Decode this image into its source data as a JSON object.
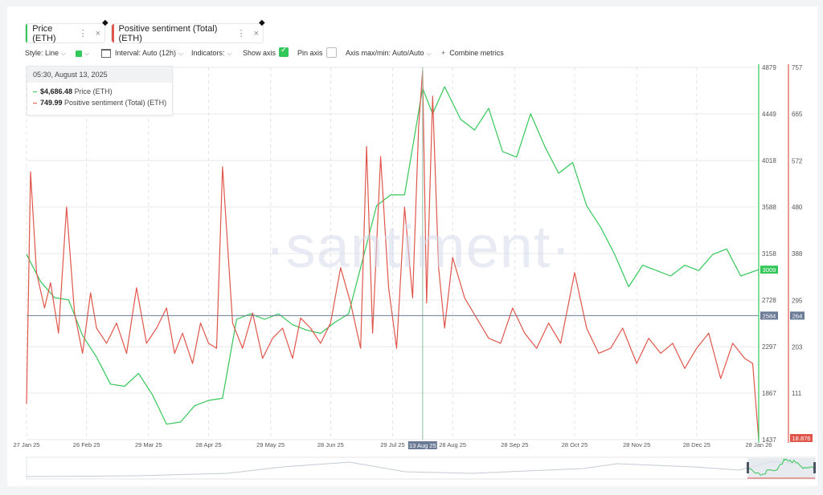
{
  "metrics": [
    {
      "label": "Price (ETH)",
      "color": "#34c759"
    },
    {
      "label": "Positive sentiment (Total) (ETH)",
      "color": "#e0564b"
    }
  ],
  "toolbar": {
    "style": "Style: Line",
    "interval": "Interval: Auto (12h)",
    "indicators": "Indicators:",
    "show_axis": "Show axis",
    "pin_axis": "Pin axis",
    "axis_maxmin": "Axis max/min: Auto/Auto",
    "combine": "Combine metrics"
  },
  "tooltip": {
    "date": "05:30, August 13, 2025",
    "price_value": "$4,686.48",
    "price_label": "Price (ETH)",
    "sentiment_value": "749.99",
    "sentiment_label": "Positive sentiment (Total) (ETH)"
  },
  "watermark": "·santiment·",
  "chart_data": {
    "type": "line",
    "x_ticks": [
      "27 Jan 25",
      "26 Feb 25",
      "29 Mar 25",
      "28 Apr 25",
      "29 May 25",
      "28 Jun 25",
      "29 Jul 25",
      "13 Aug 25",
      "28 Aug 25",
      "28 Sep 25",
      "28 Oct 25",
      "28 Nov 25",
      "28 Dec 25",
      "28 Jan 26"
    ],
    "x_range": [
      "2025-01-27",
      "2026-01-28"
    ],
    "crosshair_date": "13 Aug 25",
    "y_left_ticks": [
      4879,
      4449,
      4018,
      3588,
      3158,
      2728,
      2297,
      1867,
      1437
    ],
    "y_left_range": [
      1437,
      4879
    ],
    "y_right_ticks": [
      757,
      665,
      572,
      480,
      388,
      295,
      203,
      111
    ],
    "y_right_range": [
      18.876,
      757
    ],
    "crosshair_price_level": "2584",
    "crosshair_sentiment_level": "264",
    "last_price_label": "3009",
    "last_sentiment_label": "18.876",
    "grid": true,
    "series": [
      {
        "name": "Price (ETH)",
        "color": "#34c759",
        "axis": "left",
        "dates": [
          "2025-01-27",
          "2025-02-03",
          "2025-02-10",
          "2025-02-17",
          "2025-02-24",
          "2025-03-03",
          "2025-03-10",
          "2025-03-17",
          "2025-03-24",
          "2025-03-31",
          "2025-04-07",
          "2025-04-14",
          "2025-04-21",
          "2025-04-28",
          "2025-05-05",
          "2025-05-12",
          "2025-05-19",
          "2025-05-26",
          "2025-06-02",
          "2025-06-09",
          "2025-06-16",
          "2025-06-23",
          "2025-06-30",
          "2025-07-07",
          "2025-07-14",
          "2025-07-21",
          "2025-07-28",
          "2025-08-04",
          "2025-08-13",
          "2025-08-18",
          "2025-08-24",
          "2025-09-01",
          "2025-09-08",
          "2025-09-15",
          "2025-09-22",
          "2025-09-29",
          "2025-10-06",
          "2025-10-13",
          "2025-10-20",
          "2025-10-27",
          "2025-11-03",
          "2025-11-10",
          "2025-11-17",
          "2025-11-24",
          "2025-12-01",
          "2025-12-08",
          "2025-12-15",
          "2025-12-22",
          "2025-12-29",
          "2026-01-05",
          "2026-01-12",
          "2026-01-19",
          "2026-01-28"
        ],
        "values": [
          3150,
          2900,
          2750,
          2730,
          2400,
          2200,
          1950,
          1930,
          2050,
          1850,
          1580,
          1600,
          1750,
          1800,
          1820,
          2550,
          2600,
          2550,
          2600,
          2500,
          2450,
          2420,
          2520,
          2600,
          3100,
          3600,
          3700,
          3700,
          4686,
          4450,
          4700,
          4400,
          4300,
          4500,
          4100,
          4050,
          4450,
          4150,
          3900,
          4000,
          3600,
          3400,
          3150,
          2850,
          3050,
          3000,
          2950,
          3050,
          3000,
          3150,
          3200,
          2950,
          3009
        ]
      },
      {
        "name": "Positive sentiment (Total) (ETH)",
        "color": "#e0564b",
        "axis": "right",
        "dates": [
          "2025-01-27",
          "2025-01-29",
          "2025-02-01",
          "2025-02-05",
          "2025-02-08",
          "2025-02-12",
          "2025-02-16",
          "2025-02-20",
          "2025-02-24",
          "2025-02-28",
          "2025-03-03",
          "2025-03-08",
          "2025-03-13",
          "2025-03-18",
          "2025-03-23",
          "2025-03-28",
          "2025-04-02",
          "2025-04-07",
          "2025-04-11",
          "2025-04-15",
          "2025-04-20",
          "2025-04-24",
          "2025-04-28",
          "2025-05-02",
          "2025-05-05",
          "2025-05-10",
          "2025-05-15",
          "2025-05-20",
          "2025-05-25",
          "2025-05-30",
          "2025-06-04",
          "2025-06-09",
          "2025-06-13",
          "2025-06-18",
          "2025-06-23",
          "2025-06-28",
          "2025-07-03",
          "2025-07-08",
          "2025-07-13",
          "2025-07-16",
          "2025-07-19",
          "2025-07-23",
          "2025-07-27",
          "2025-07-31",
          "2025-08-04",
          "2025-08-08",
          "2025-08-11",
          "2025-08-13",
          "2025-08-15",
          "2025-08-18",
          "2025-08-21",
          "2025-08-24",
          "2025-08-28",
          "2025-09-03",
          "2025-09-09",
          "2025-09-15",
          "2025-09-21",
          "2025-09-27",
          "2025-10-03",
          "2025-10-09",
          "2025-10-15",
          "2025-10-21",
          "2025-10-28",
          "2025-11-03",
          "2025-11-09",
          "2025-11-15",
          "2025-11-21",
          "2025-11-28",
          "2025-12-04",
          "2025-12-10",
          "2025-12-16",
          "2025-12-22",
          "2025-12-28",
          "2026-01-03",
          "2026-01-09",
          "2026-01-15",
          "2026-01-21",
          "2026-01-25",
          "2026-01-28"
        ],
        "values": [
          90,
          550,
          350,
          280,
          330,
          230,
          480,
          270,
          190,
          310,
          240,
          210,
          250,
          190,
          320,
          210,
          240,
          280,
          190,
          230,
          170,
          250,
          210,
          200,
          560,
          250,
          200,
          270,
          180,
          220,
          240,
          180,
          260,
          240,
          210,
          250,
          360,
          290,
          200,
          600,
          230,
          580,
          320,
          200,
          480,
          300,
          640,
          750,
          290,
          700,
          360,
          240,
          380,
          300,
          260,
          220,
          210,
          280,
          230,
          200,
          250,
          210,
          350,
          240,
          190,
          200,
          240,
          170,
          220,
          190,
          210,
          160,
          200,
          230,
          140,
          210,
          180,
          170,
          18.876
        ]
      }
    ]
  }
}
